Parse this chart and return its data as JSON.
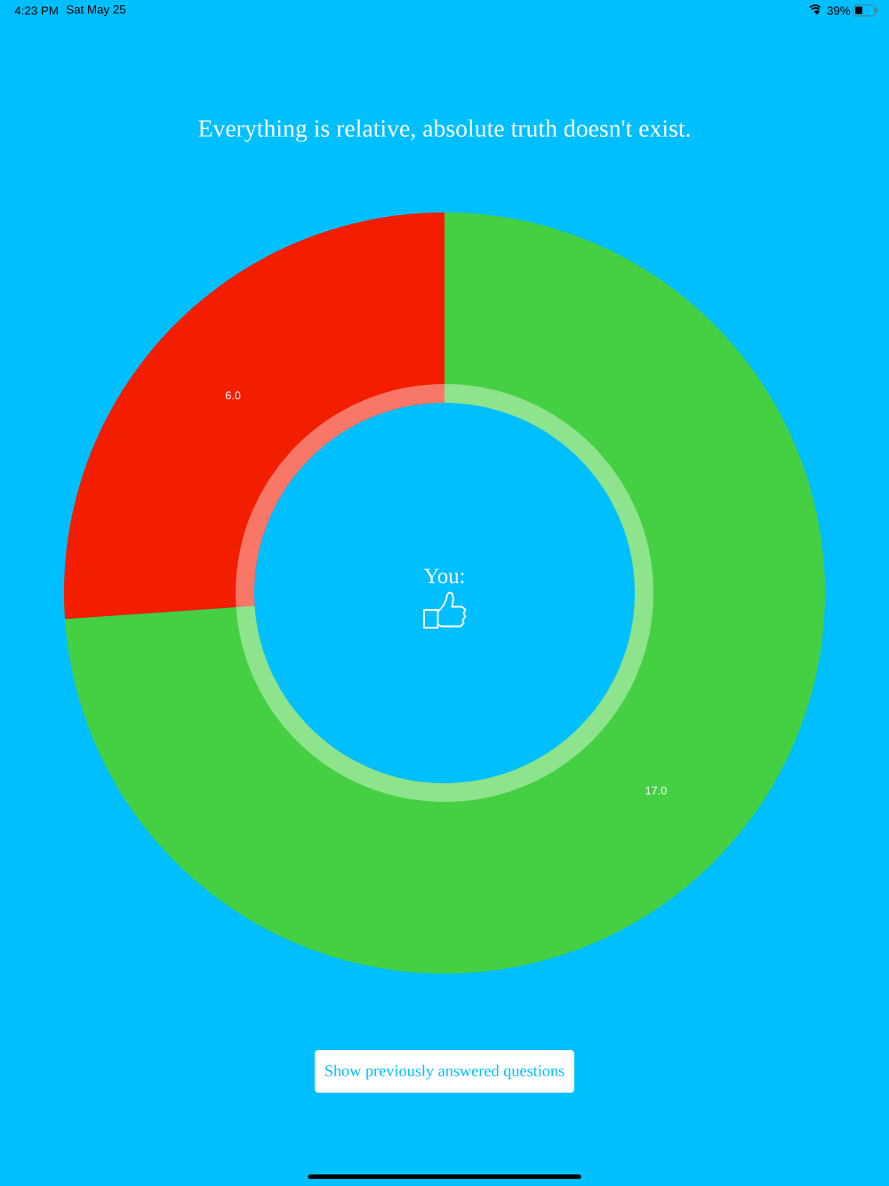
{
  "chart_data": {
    "type": "donut",
    "title": "Everything is relative, absolute truth doesn't exist.",
    "categories": [
      null,
      null
    ],
    "values": [
      17,
      6
    ],
    "colors": [
      "#44d042",
      "#f31d00"
    ],
    "value_labels": [
      "17.0",
      "6.0"
    ],
    "annotations": [
      "4:23 PM",
      "Sat May 25",
      "39%",
      "You:",
      "Show previously answered questions"
    ]
  }
}
